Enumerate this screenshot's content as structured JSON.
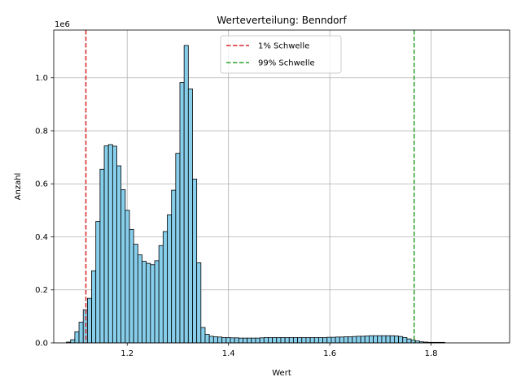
{
  "chart_data": {
    "type": "bar",
    "title": "Werteverteilung: Benndorf",
    "xlabel": "Wert",
    "ylabel": "Anzahl",
    "y_offset_label": "1e6",
    "xlim": [
      1.055,
      1.955
    ],
    "ylim": [
      0,
      1.18
    ],
    "bin_start": 1.08,
    "bin_width": 0.0083,
    "values": [
      0.003,
      0.012,
      0.042,
      0.078,
      0.125,
      0.168,
      0.272,
      0.458,
      0.655,
      0.743,
      0.748,
      0.742,
      0.668,
      0.578,
      0.5,
      0.428,
      0.372,
      0.332,
      0.308,
      0.3,
      0.295,
      0.31,
      0.367,
      0.42,
      0.483,
      0.576,
      0.715,
      0.982,
      1.122,
      0.958,
      0.618,
      0.302,
      0.058,
      0.032,
      0.025,
      0.023,
      0.022,
      0.02,
      0.02,
      0.019,
      0.019,
      0.018,
      0.018,
      0.018,
      0.018,
      0.018,
      0.019,
      0.02,
      0.02,
      0.02,
      0.02,
      0.02,
      0.02,
      0.02,
      0.02,
      0.02,
      0.02,
      0.02,
      0.02,
      0.02,
      0.02,
      0.02,
      0.021,
      0.021,
      0.022,
      0.022,
      0.023,
      0.023,
      0.024,
      0.025,
      0.025,
      0.026,
      0.027,
      0.027,
      0.027,
      0.027,
      0.027,
      0.027,
      0.026,
      0.024,
      0.02,
      0.015,
      0.01,
      0.007,
      0.004,
      0.003,
      0.002,
      0.002,
      0.002,
      0.002
    ],
    "x_ticks": [
      "1.2",
      "1.4",
      "1.6",
      "1.8"
    ],
    "y_ticks": [
      "0.0",
      "0.2",
      "0.4",
      "0.6",
      "0.8",
      "1.0"
    ],
    "bar_color": "#87ceeb",
    "bar_edge_color": "#000000",
    "grid": true,
    "legend_position": "top-center",
    "thresholds": [
      {
        "name": "1% Schwelle",
        "x": 1.1185,
        "color": "#d62728"
      },
      {
        "name": "99% Schwelle",
        "x": 1.7665,
        "color": "#2ca02c"
      }
    ]
  }
}
